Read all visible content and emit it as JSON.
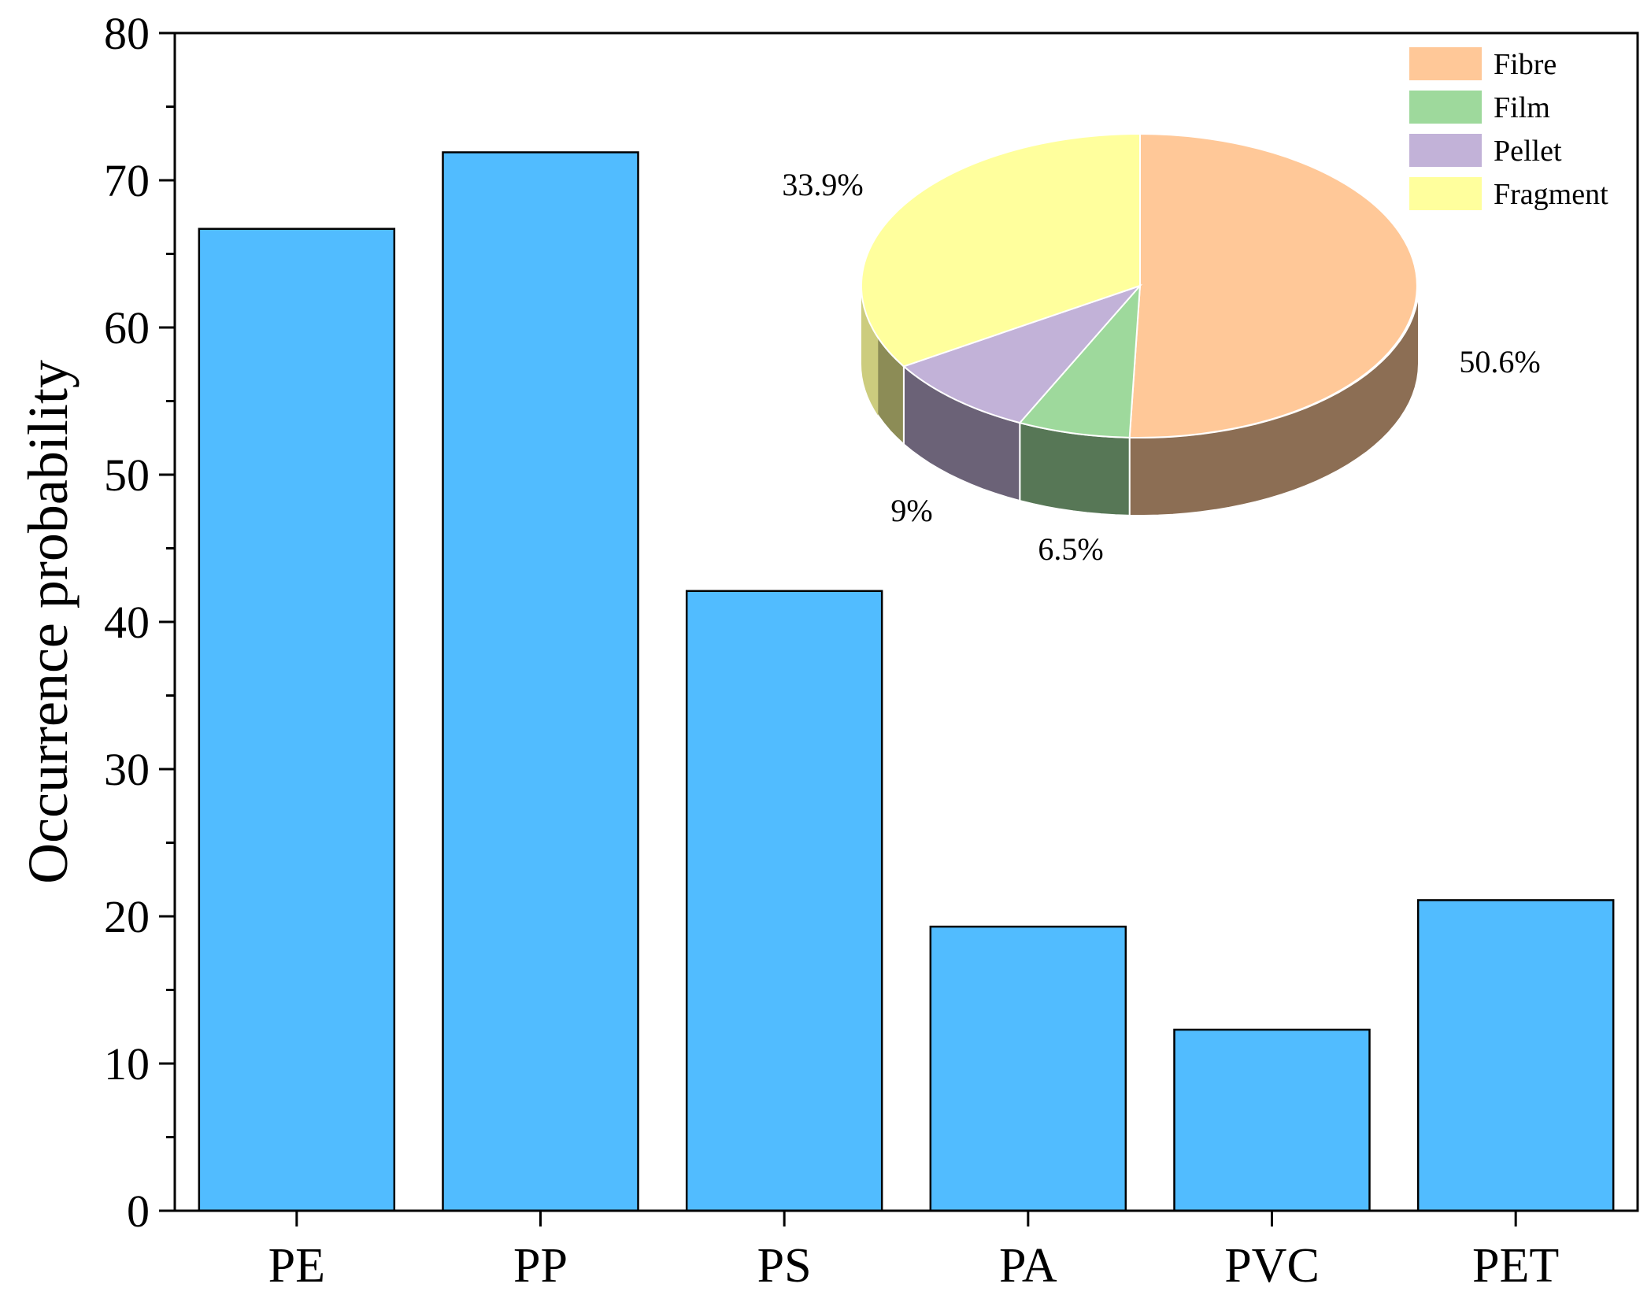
{
  "chart_data": [
    {
      "type": "bar",
      "categories": [
        "PE",
        "PP",
        "PS",
        "PA",
        "PVC",
        "PET"
      ],
      "values": [
        66.7,
        71.9,
        42.1,
        19.3,
        12.3,
        21.1
      ],
      "ylabel": "Occurrence probability",
      "xlabel": "",
      "ylim": [
        0,
        80
      ],
      "yticks": [
        0,
        10,
        20,
        30,
        40,
        50,
        60,
        70,
        80
      ],
      "bar_color": "#51BCFF",
      "grid": false
    },
    {
      "type": "pie",
      "style": "3d",
      "slices": [
        {
          "label": "Fibre",
          "value": 50.6,
          "display": "50.6%",
          "color": "#FFC898"
        },
        {
          "label": "Film",
          "value": 6.5,
          "display": "6.5%",
          "color": "#9ED99C"
        },
        {
          "label": "Pellet",
          "value": 9,
          "display": "9%",
          "color": "#C2B2D8"
        },
        {
          "label": "Fragment",
          "value": 33.9,
          "display": "33.9%",
          "color": "#FFFF9D"
        }
      ],
      "legend_position": "top-right"
    }
  ]
}
